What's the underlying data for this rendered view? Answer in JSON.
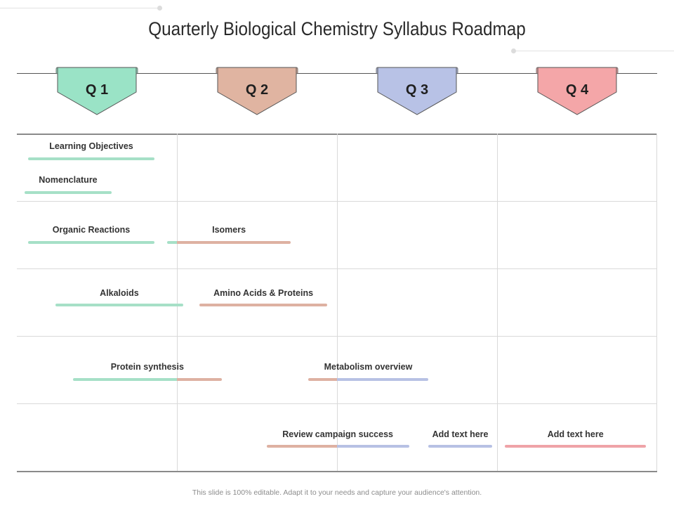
{
  "title": "Quarterly Biological Chemistry Syllabus Roadmap",
  "colors": {
    "q1": "#9ae3c6",
    "q2": "#e0b4a1",
    "q3": "#b8c2e6",
    "q4": "#f4a6a8",
    "q1_bar": "#a6e0c7",
    "q2_bar": "#deb1a2",
    "q3_bar": "#b7c1e4",
    "q4_bar": "#efa3a8"
  },
  "quarters": [
    {
      "label": "Q 1",
      "color": "q1"
    },
    {
      "label": "Q 2",
      "color": "q2"
    },
    {
      "label": "Q 3",
      "color": "q3"
    },
    {
      "label": "Q 4",
      "color": "q4"
    }
  ],
  "tasks": [
    {
      "label": "Learning Objectives",
      "start_quarter": 1.07,
      "end_quarter": 1.86,
      "segments": [
        "q1_bar"
      ]
    },
    {
      "label": "Nomenclature",
      "start_quarter": 1.05,
      "end_quarter": 1.59,
      "segments": [
        "q1_bar"
      ]
    },
    {
      "label": "Organic Reactions",
      "start_quarter": 1.07,
      "end_quarter": 1.86,
      "segments": [
        "q1_bar"
      ]
    },
    {
      "label": "Isomers",
      "start_quarter": 1.94,
      "end_quarter": 2.71,
      "segments": [
        "q1_bar",
        "q2_bar"
      ],
      "split": 2.0
    },
    {
      "label": "Alkaloids",
      "start_quarter": 1.24,
      "end_quarter": 2.04,
      "segments": [
        "q1_bar"
      ]
    },
    {
      "label": "Amino Acids & Proteins",
      "start_quarter": 2.14,
      "end_quarter": 2.94,
      "segments": [
        "q2_bar"
      ]
    },
    {
      "label": "Protein synthesis",
      "start_quarter": 1.35,
      "end_quarter": 2.28,
      "segments": [
        "q1_bar",
        "q2_bar"
      ],
      "split": 2.0
    },
    {
      "label": "Metabolism overview",
      "start_quarter": 2.82,
      "end_quarter": 3.57,
      "segments": [
        "q2_bar",
        "q3_bar"
      ],
      "split": 3.0
    },
    {
      "label": "Review campaign success",
      "start_quarter": 2.56,
      "end_quarter": 3.45,
      "segments": [
        "q2_bar",
        "q3_bar"
      ],
      "split": 3.0
    },
    {
      "label": "Add text here",
      "start_quarter": 3.57,
      "end_quarter": 3.97,
      "segments": [
        "q3_bar"
      ]
    },
    {
      "label": "Add text here",
      "start_quarter": 4.05,
      "end_quarter": 4.93,
      "segments": [
        "q4_bar"
      ]
    }
  ],
  "footer": "This slide is 100% editable. Adapt it to your needs and capture your audience's attention."
}
